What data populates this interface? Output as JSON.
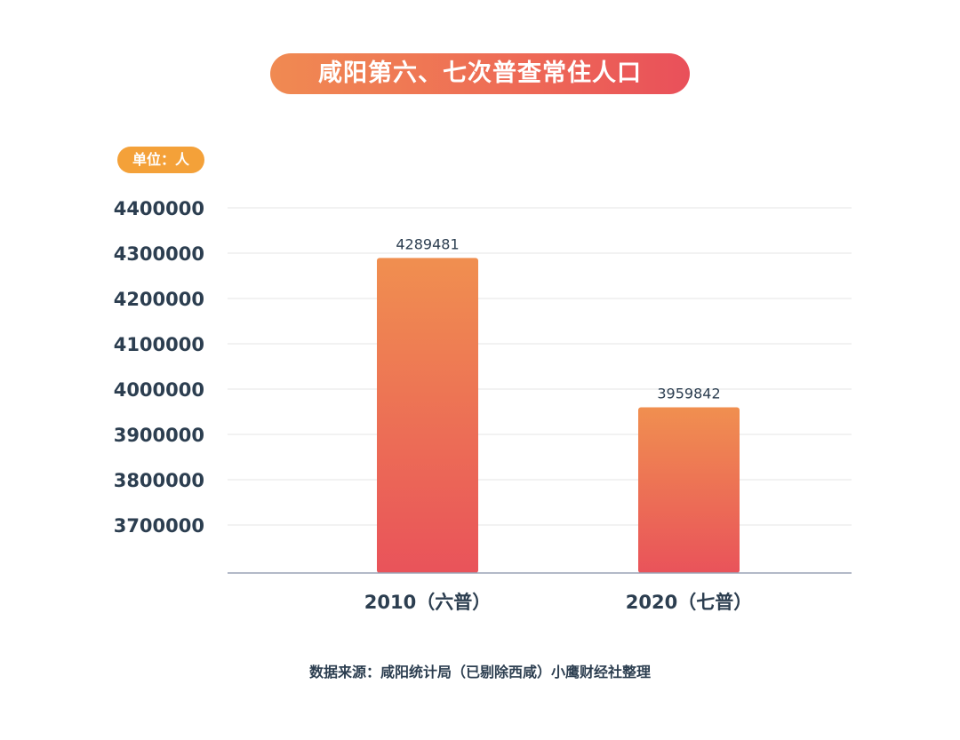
{
  "header": {
    "title": "咸阳第六、七次普查常住人口",
    "unit_label": "单位：人"
  },
  "footer": {
    "source": "数据来源：咸阳统计局（已剔除西咸）小鹰财经社整理"
  },
  "colors": {
    "bar_top": "#f08f50",
    "bar_bottom": "#e9535a",
    "axis_text": "#2c3e50",
    "grid": "#e6e6e6",
    "unit_pill": "#f4a139"
  },
  "chart_data": {
    "type": "bar",
    "categories": [
      "2010（六普）",
      "2020（七普）"
    ],
    "values": [
      4289481,
      3959842
    ],
    "value_labels": [
      "4289481",
      "3959842"
    ],
    "title": "咸阳第六、七次普查常住人口",
    "xlabel": "",
    "ylabel": "单位：人",
    "ylim": [
      3600000,
      4400000
    ],
    "yticks": [
      4400000,
      4300000,
      4200000,
      4100000,
      4000000,
      3900000,
      3800000,
      3700000
    ],
    "ytick_labels": [
      "4400000",
      "4300000",
      "4200000",
      "4100000",
      "4000000",
      "3900000",
      "3800000",
      "3700000"
    ],
    "grid": true
  }
}
